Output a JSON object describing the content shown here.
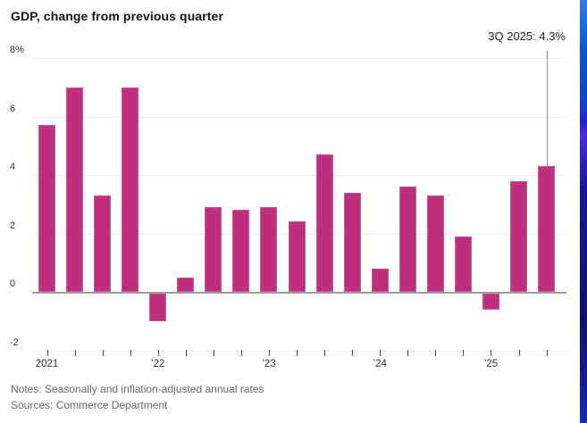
{
  "header": {
    "title": "GDP, change from previous quarter"
  },
  "callout": {
    "label": "3Q 2025: 4.3%",
    "target_quarter": "3Q 2025",
    "line_color": "#8c8c8c"
  },
  "chart_data": {
    "type": "bar",
    "title": "GDP, change from previous quarter",
    "unit": "percent, annualized",
    "categories": [
      "1Q 2021",
      "2Q 2021",
      "3Q 2021",
      "4Q 2021",
      "1Q 2022",
      "2Q 2022",
      "3Q 2022",
      "4Q 2022",
      "1Q 2023",
      "2Q 2023",
      "3Q 2023",
      "4Q 2023",
      "1Q 2024",
      "2Q 2024",
      "3Q 2024",
      "4Q 2024",
      "1Q 2025",
      "2Q 2025",
      "3Q 2025"
    ],
    "values": [
      5.7,
      7.0,
      3.3,
      7.0,
      -1.0,
      0.5,
      2.9,
      2.8,
      2.9,
      2.4,
      4.7,
      3.4,
      0.8,
      3.6,
      3.3,
      1.9,
      -0.6,
      3.8,
      4.3
    ],
    "ylim": [
      -2,
      8
    ],
    "y_ticks": [
      {
        "label": "8%",
        "value": 8
      },
      {
        "label": "6",
        "value": 6
      },
      {
        "label": "4",
        "value": 4
      },
      {
        "label": "2",
        "value": 2
      },
      {
        "label": "0",
        "value": 0
      },
      {
        "label": "-2",
        "value": -2
      }
    ],
    "x_ticks": [
      {
        "label": "2021",
        "index": 0
      },
      {
        "label": "’22",
        "index": 4
      },
      {
        "label": "’23",
        "index": 8
      },
      {
        "label": "’24",
        "index": 12
      },
      {
        "label": "’25",
        "index": 16
      }
    ],
    "grid": "horizontal",
    "legend": "none",
    "bar_color": "#bf2e7b",
    "grid_color": "#ececec",
    "zero_line_color": "#9b9b9b"
  },
  "footer": {
    "notes": "Notes: Seasonally and inflation-adjusted annual rates",
    "sources": "Sources: Commerce Department"
  },
  "decor": {
    "right_stripe_gradient": [
      "#2f7de8 0%",
      "#0a64e0 9%",
      "#0857d2 12%",
      "#0b46c8 24%",
      "#1a22d4 29%",
      "#4b2be8 32%",
      "#131a9a 44%",
      "#0d1270 75%",
      "#12209a 92%",
      "#1b2fae 100%"
    ]
  }
}
